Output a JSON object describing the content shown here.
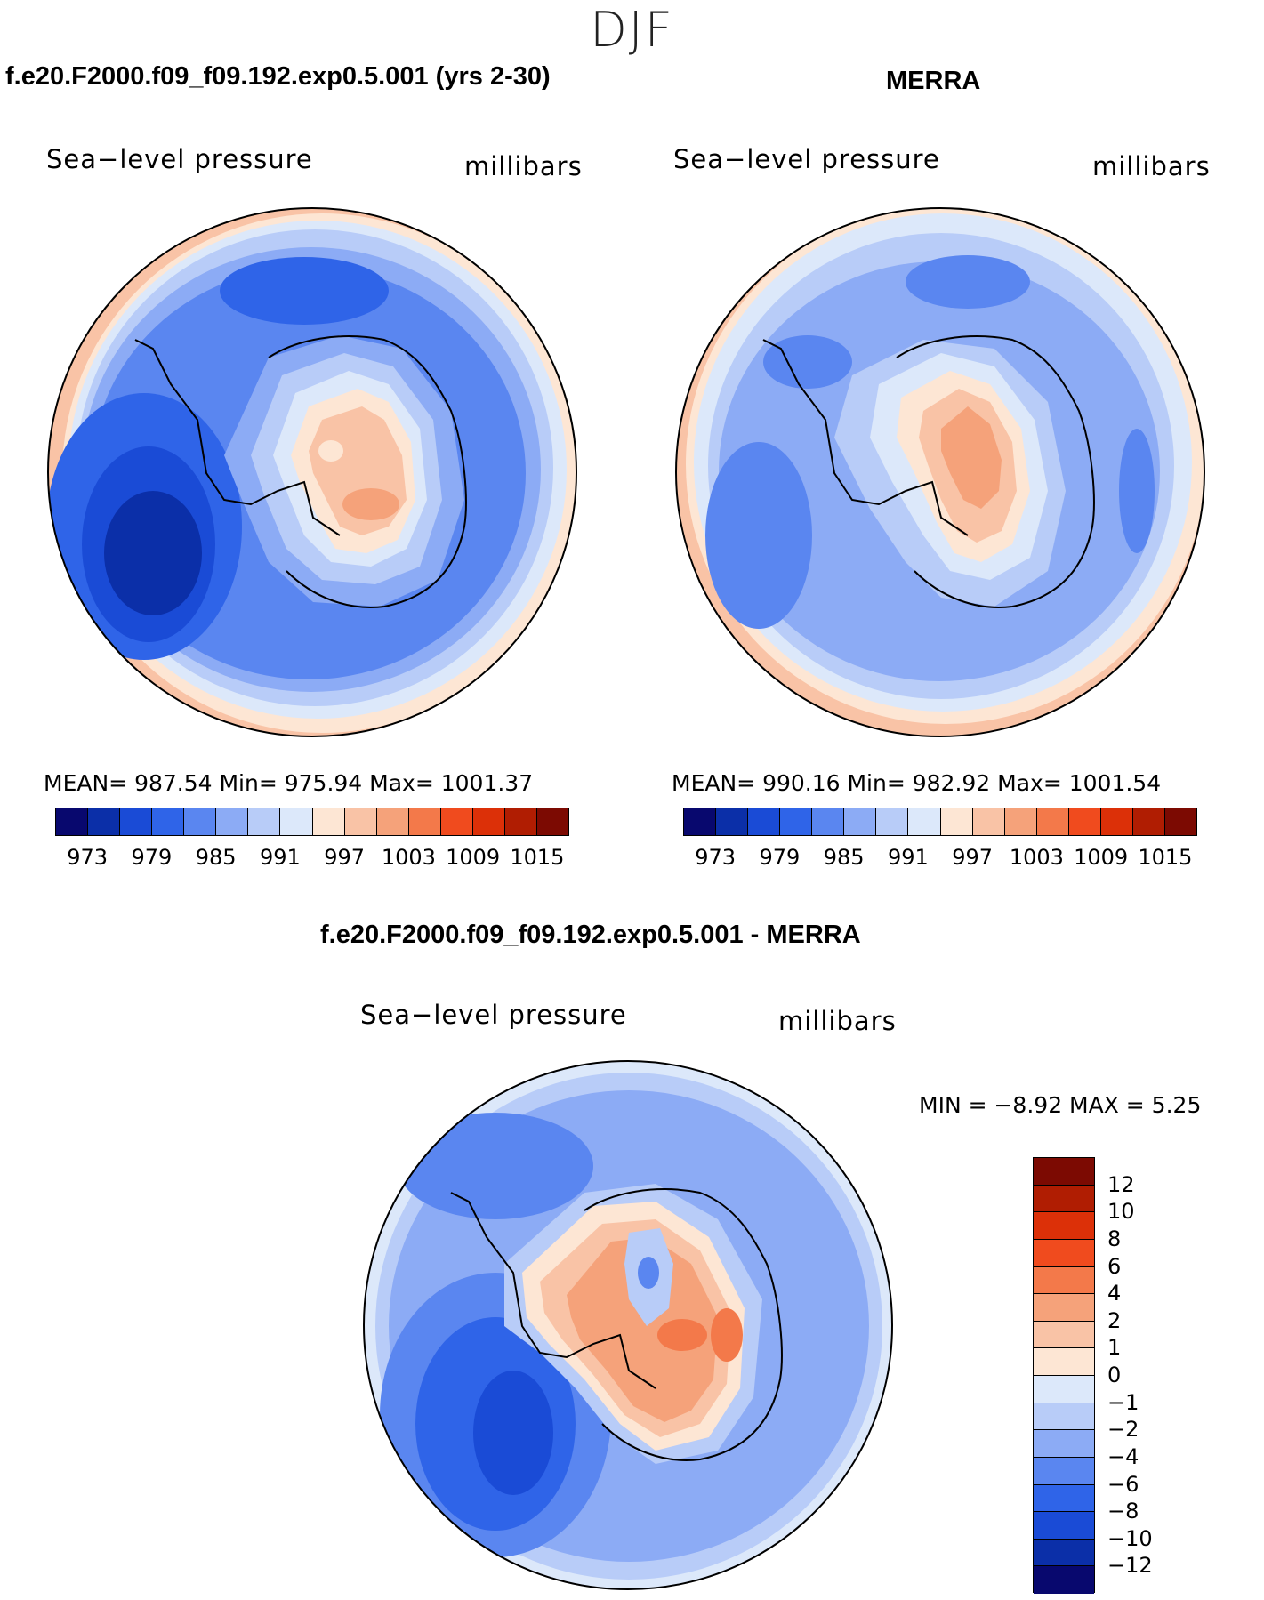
{
  "season": "DJF",
  "panels": {
    "model": {
      "title": "f.e20.F2000.f09_f09.192.exp0.5.001 (yrs 2-30)",
      "variable": "Sea−level pressure",
      "units": "millibars",
      "stats": "MEAN= 987.54   Min= 975.94   Max= 1001.37"
    },
    "obs": {
      "title": "MERRA",
      "variable": "Sea−level pressure",
      "units": "millibars",
      "stats": "MEAN= 990.16   Min= 982.92   Max= 1001.54"
    },
    "diff": {
      "title": "f.e20.F2000.f09_f09.192.exp0.5.001 - MERRA",
      "variable": "Sea−level pressure",
      "units": "millibars",
      "stats": "MIN =   −8.92  MAX =     5.25"
    }
  },
  "abs_colorbar": {
    "colors": [
      "#08086e",
      "#0b2fa8",
      "#1a4bd6",
      "#2f64e8",
      "#5a86f0",
      "#8cabf5",
      "#b8ccf8",
      "#dce8fa",
      "#fde6d4",
      "#f9c3a6",
      "#f5a27a",
      "#f3794a",
      "#f04b1e",
      "#dc3008",
      "#b01d02",
      "#7c0a02"
    ],
    "tick_labels": [
      "973",
      "979",
      "985",
      "991",
      "997",
      "1003",
      "1009",
      "1015"
    ]
  },
  "diff_colorbar": {
    "colors": [
      "#7c0a02",
      "#b01d02",
      "#dc3008",
      "#f04b1e",
      "#f3794a",
      "#f5a27a",
      "#f9c3a6",
      "#fde6d4",
      "#dce8fa",
      "#b8ccf8",
      "#8cabf5",
      "#5a86f0",
      "#2f64e8",
      "#1a4bd6",
      "#0b2fa8",
      "#08086e"
    ],
    "tick_labels": [
      "12",
      "10",
      "8",
      "6",
      "4",
      "2",
      "1",
      "0",
      "−1",
      "−2",
      "−4",
      "−6",
      "−8",
      "−10",
      "−12"
    ]
  }
}
